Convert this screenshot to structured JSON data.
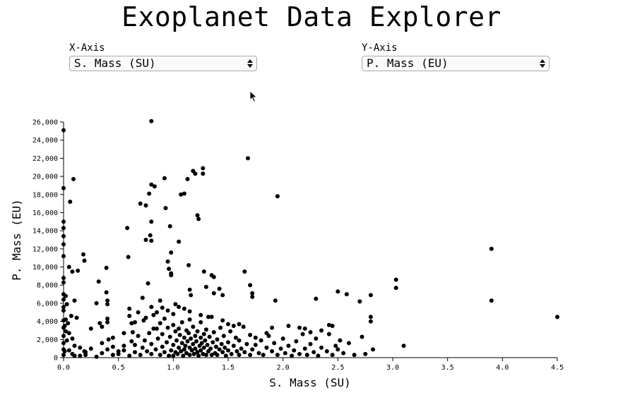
{
  "page": {
    "title": "Exoplanet Data Explorer"
  },
  "controls": {
    "x_axis": {
      "label": "X-Axis",
      "selected": "S. Mass (SU)"
    },
    "y_axis": {
      "label": "Y-Axis",
      "selected": "P. Mass (EU)"
    }
  },
  "icons": {
    "cursor": "mouse-pointer-icon",
    "select_arrows": "up-down-arrows-icon"
  },
  "chart_data": {
    "type": "scatter",
    "title": "",
    "xlabel": "S. Mass (SU)",
    "ylabel": "P. Mass (EU)",
    "xlim": [
      0,
      4.5
    ],
    "ylim": [
      0,
      26000
    ],
    "x_ticks": [
      "0.0",
      "0.5",
      "1.0",
      "1.5",
      "2.0",
      "2.5",
      "3.0",
      "3.5",
      "4.0",
      "4.5"
    ],
    "y_ticks": [
      "0",
      "2,000",
      "4,000",
      "6,000",
      "8,000",
      "10,000",
      "12,000",
      "14,000",
      "16,000",
      "18,000",
      "20,000",
      "22,000",
      "24,000",
      "26,000"
    ],
    "grid": false,
    "point_color": "#000000",
    "series": [
      {
        "points": [
          [
            0.0,
            25100
          ],
          [
            0.0,
            18700
          ],
          [
            0.0,
            15000
          ],
          [
            0.0,
            14300
          ],
          [
            0.0,
            11200
          ],
          [
            0.0,
            8300
          ],
          [
            0.0,
            6400
          ],
          [
            0.0,
            5200
          ],
          [
            0.0,
            4100
          ],
          [
            0.0,
            3300
          ],
          [
            0.0,
            2400
          ],
          [
            0.0,
            1600
          ],
          [
            0.0,
            900
          ],
          [
            0.0,
            300
          ],
          [
            0.01,
            700
          ],
          [
            0.02,
            4200
          ],
          [
            0.02,
            6800
          ],
          [
            0.03,
            5900
          ],
          [
            0.04,
            3800
          ],
          [
            0.05,
            10000
          ],
          [
            0.05,
            2700
          ],
          [
            0.06,
            17200
          ],
          [
            0.07,
            4600
          ],
          [
            0.08,
            9500
          ],
          [
            0.08,
            2100
          ],
          [
            0.09,
            19700
          ],
          [
            0.1,
            6300
          ],
          [
            0.1,
            1300
          ],
          [
            0.12,
            4400
          ],
          [
            0.13,
            9600
          ],
          [
            0.15,
            200
          ],
          [
            0.18,
            11400
          ],
          [
            0.19,
            10700
          ],
          [
            0.19,
            700
          ],
          [
            0.25,
            3200
          ],
          [
            0.3,
            6000
          ],
          [
            0.32,
            8400
          ],
          [
            0.33,
            3800
          ],
          [
            0.35,
            3400
          ],
          [
            0.39,
            9900
          ],
          [
            0.39,
            7200
          ],
          [
            0.4,
            6300
          ],
          [
            0.4,
            5900
          ],
          [
            0.4,
            4300
          ],
          [
            0.4,
            3900
          ],
          [
            0.41,
            2000
          ],
          [
            0.45,
            1200
          ],
          [
            0.5,
            400
          ],
          [
            0.55,
            800
          ],
          [
            0.58,
            14300
          ],
          [
            0.59,
            11100
          ],
          [
            0.6,
            5400
          ],
          [
            0.6,
            4600
          ],
          [
            0.62,
            3800
          ],
          [
            0.63,
            2800
          ],
          [
            0.65,
            1400
          ],
          [
            0.68,
            5000
          ],
          [
            0.7,
            17000
          ],
          [
            0.72,
            6600
          ],
          [
            0.73,
            4100
          ],
          [
            0.75,
            16800
          ],
          [
            0.75,
            13000
          ],
          [
            0.77,
            8200
          ],
          [
            0.78,
            18100
          ],
          [
            0.79,
            13500
          ],
          [
            0.8,
            19100
          ],
          [
            0.8,
            15000
          ],
          [
            0.8,
            12900
          ],
          [
            0.8,
            5600
          ],
          [
            0.8,
            26100
          ],
          [
            0.82,
            4700
          ],
          [
            0.83,
            18900
          ],
          [
            0.85,
            3200
          ],
          [
            0.88,
            6300
          ],
          [
            0.9,
            5500
          ],
          [
            0.92,
            19800
          ],
          [
            0.93,
            16500
          ],
          [
            0.95,
            10600
          ],
          [
            0.96,
            9800
          ],
          [
            0.97,
            14500
          ],
          [
            0.98,
            11600
          ],
          [
            0.98,
            9300
          ],
          [
            0.98,
            9100
          ],
          [
            1.0,
            4800
          ],
          [
            1.02,
            5900
          ],
          [
            1.05,
            12800
          ],
          [
            1.07,
            18000
          ],
          [
            1.1,
            5400
          ],
          [
            1.1,
            18100
          ],
          [
            1.13,
            19700
          ],
          [
            1.14,
            10200
          ],
          [
            1.15,
            7500
          ],
          [
            1.15,
            4200
          ],
          [
            1.16,
            6900
          ],
          [
            1.18,
            20600
          ],
          [
            1.2,
            20300
          ],
          [
            1.22,
            15700
          ],
          [
            1.23,
            15300
          ],
          [
            1.25,
            3900
          ],
          [
            1.27,
            20900
          ],
          [
            1.27,
            20300
          ],
          [
            1.28,
            9500
          ],
          [
            1.3,
            7800
          ],
          [
            1.32,
            4500
          ],
          [
            1.35,
            9100
          ],
          [
            1.37,
            8900
          ],
          [
            1.37,
            7100
          ],
          [
            1.42,
            7600
          ],
          [
            1.45,
            6900
          ],
          [
            1.5,
            3700
          ],
          [
            1.65,
            9500
          ],
          [
            1.68,
            22000
          ],
          [
            1.7,
            8000
          ],
          [
            1.72,
            7100
          ],
          [
            1.72,
            6700
          ],
          [
            1.75,
            2200
          ],
          [
            1.93,
            6300
          ],
          [
            1.95,
            17800
          ],
          [
            2.05,
            3500
          ],
          [
            2.15,
            3300
          ],
          [
            2.3,
            6500
          ],
          [
            2.45,
            3500
          ],
          [
            2.5,
            7300
          ],
          [
            2.58,
            7000
          ],
          [
            2.7,
            6200
          ],
          [
            2.72,
            2300
          ],
          [
            2.8,
            6900
          ],
          [
            2.8,
            4500
          ],
          [
            2.8,
            4000
          ],
          [
            2.82,
            900
          ],
          [
            3.03,
            8600
          ],
          [
            3.03,
            7700
          ],
          [
            3.1,
            1300
          ],
          [
            3.9,
            12000
          ],
          [
            3.9,
            6300
          ],
          [
            4.5,
            4500
          ],
          [
            0.1,
            200
          ],
          [
            0.2,
            300
          ],
          [
            0.3,
            100
          ],
          [
            0.35,
            500
          ],
          [
            0.4,
            900
          ],
          [
            0.45,
            300
          ],
          [
            0.5,
            700
          ],
          [
            0.55,
            1300
          ],
          [
            0.6,
            200
          ],
          [
            0.62,
            1800
          ],
          [
            0.65,
            600
          ],
          [
            0.68,
            2400
          ],
          [
            0.7,
            300
          ],
          [
            0.72,
            1100
          ],
          [
            0.74,
            1900
          ],
          [
            0.76,
            700
          ],
          [
            0.78,
            2700
          ],
          [
            0.8,
            400
          ],
          [
            0.8,
            1500
          ],
          [
            0.82,
            3200
          ],
          [
            0.84,
            900
          ],
          [
            0.86,
            2100
          ],
          [
            0.88,
            300
          ],
          [
            0.88,
            3800
          ],
          [
            0.9,
            1200
          ],
          [
            0.9,
            2600
          ],
          [
            0.92,
            600
          ],
          [
            0.92,
            4300
          ],
          [
            0.94,
            1700
          ],
          [
            0.95,
            3300
          ],
          [
            0.96,
            200
          ],
          [
            0.97,
            2300
          ],
          [
            0.98,
            800
          ],
          [
            1.0,
            1400
          ],
          [
            1.0,
            3600
          ],
          [
            1.0,
            200
          ],
          [
            1.02,
            2900
          ],
          [
            1.02,
            600
          ],
          [
            1.03,
            1900
          ],
          [
            1.04,
            400
          ],
          [
            1.05,
            3200
          ],
          [
            1.05,
            1100
          ],
          [
            1.06,
            2500
          ],
          [
            1.07,
            700
          ],
          [
            1.08,
            1600
          ],
          [
            1.08,
            3900
          ],
          [
            1.09,
            200
          ],
          [
            1.1,
            2200
          ],
          [
            1.1,
            900
          ],
          [
            1.11,
            1300
          ],
          [
            1.12,
            3000
          ],
          [
            1.12,
            500
          ],
          [
            1.13,
            1800
          ],
          [
            1.14,
            2700
          ],
          [
            1.15,
            300
          ],
          [
            1.15,
            1100
          ],
          [
            1.16,
            2100
          ],
          [
            1.17,
            800
          ],
          [
            1.18,
            1500
          ],
          [
            1.18,
            3400
          ],
          [
            1.19,
            400
          ],
          [
            1.2,
            2400
          ],
          [
            1.2,
            1000
          ],
          [
            1.21,
            1800
          ],
          [
            1.22,
            600
          ],
          [
            1.22,
            2900
          ],
          [
            1.23,
            200
          ],
          [
            1.24,
            1300
          ],
          [
            1.25,
            2200
          ],
          [
            1.25,
            800
          ],
          [
            1.26,
            1600
          ],
          [
            1.27,
            400
          ],
          [
            1.28,
            2600
          ],
          [
            1.28,
            1100
          ],
          [
            1.29,
            1900
          ],
          [
            1.3,
            300
          ],
          [
            1.3,
            3100
          ],
          [
            1.31,
            1400
          ],
          [
            1.32,
            700
          ],
          [
            1.33,
            2300
          ],
          [
            1.34,
            1000
          ],
          [
            1.35,
            300
          ],
          [
            1.36,
            1700
          ],
          [
            1.37,
            2800
          ],
          [
            1.38,
            500
          ],
          [
            1.39,
            1200
          ],
          [
            1.4,
            2000
          ],
          [
            1.4,
            300
          ],
          [
            1.42,
            900
          ],
          [
            1.43,
            3300
          ],
          [
            1.44,
            1500
          ],
          [
            1.45,
            600
          ],
          [
            1.46,
            2400
          ],
          [
            1.47,
            1100
          ],
          [
            1.48,
            200
          ],
          [
            1.5,
            1700
          ],
          [
            1.5,
            800
          ],
          [
            1.52,
            2900
          ],
          [
            1.53,
            400
          ],
          [
            1.55,
            1300
          ],
          [
            1.57,
            2200
          ],
          [
            1.58,
            700
          ],
          [
            1.6,
            1900
          ],
          [
            1.6,
            300
          ],
          [
            1.62,
            1000
          ],
          [
            1.64,
            3400
          ],
          [
            1.65,
            600
          ],
          [
            1.67,
            1500
          ],
          [
            1.7,
            2500
          ],
          [
            1.7,
            300
          ],
          [
            1.72,
            900
          ],
          [
            1.75,
            1400
          ],
          [
            1.78,
            500
          ],
          [
            1.8,
            1900
          ],
          [
            1.82,
            300
          ],
          [
            1.85,
            1100
          ],
          [
            1.87,
            2400
          ],
          [
            1.9,
            700
          ],
          [
            1.92,
            1600
          ],
          [
            1.95,
            300
          ],
          [
            1.98,
            1000
          ],
          [
            2.0,
            2100
          ],
          [
            2.02,
            500
          ],
          [
            2.05,
            1300
          ],
          [
            2.08,
            200
          ],
          [
            2.1,
            800
          ],
          [
            2.12,
            1800
          ],
          [
            2.15,
            400
          ],
          [
            2.18,
            2600
          ],
          [
            2.2,
            1000
          ],
          [
            2.22,
            300
          ],
          [
            2.25,
            1500
          ],
          [
            2.28,
            600
          ],
          [
            2.3,
            2100
          ],
          [
            2.32,
            200
          ],
          [
            2.35,
            1100
          ],
          [
            2.4,
            700
          ],
          [
            2.42,
            2600
          ],
          [
            2.45,
            300
          ],
          [
            2.48,
            1300
          ],
          [
            2.5,
            900
          ],
          [
            2.52,
            1900
          ],
          [
            2.55,
            500
          ],
          [
            2.6,
            1600
          ],
          [
            2.65,
            300
          ],
          [
            2.75,
            400
          ],
          [
            2.2,
            3200
          ],
          [
            2.25,
            2800
          ],
          [
            2.35,
            3000
          ],
          [
            2.42,
            3600
          ],
          [
            1.85,
            2700
          ],
          [
            1.9,
            3300
          ],
          [
            1.6,
            3700
          ],
          [
            1.55,
            3500
          ],
          [
            1.45,
            4100
          ],
          [
            1.35,
            4500
          ],
          [
            1.25,
            4700
          ],
          [
            1.15,
            5100
          ],
          [
            1.05,
            5600
          ],
          [
            0.95,
            5200
          ],
          [
            0.85,
            5000
          ],
          [
            0.75,
            4400
          ],
          [
            0.65,
            3900
          ],
          [
            0.55,
            2700
          ],
          [
            0.45,
            2200
          ],
          [
            0.35,
            1600
          ],
          [
            0.25,
            1000
          ],
          [
            0.2,
            600
          ],
          [
            0.15,
            1100
          ],
          [
            0.08,
            400
          ],
          [
            0.05,
            800
          ],
          [
            0.03,
            1900
          ],
          [
            0.02,
            2900
          ],
          [
            0.01,
            3500
          ],
          [
            0.0,
            5600
          ],
          [
            0.0,
            7000
          ],
          [
            0.0,
            8800
          ],
          [
            0.0,
            12500
          ],
          [
            0.0,
            13400
          ]
        ]
      }
    ]
  }
}
